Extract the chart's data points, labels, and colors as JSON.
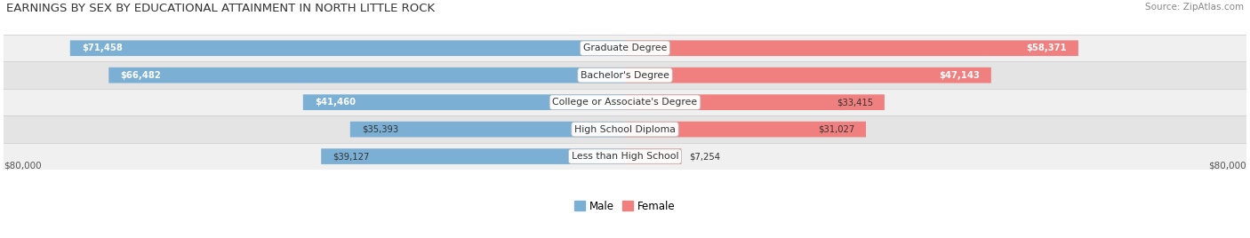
{
  "title": "EARNINGS BY SEX BY EDUCATIONAL ATTAINMENT IN NORTH LITTLE ROCK",
  "source": "Source: ZipAtlas.com",
  "categories": [
    "Less than High School",
    "High School Diploma",
    "College or Associate's Degree",
    "Bachelor's Degree",
    "Graduate Degree"
  ],
  "male_values": [
    39127,
    35393,
    41460,
    66482,
    71458
  ],
  "female_values": [
    7254,
    31027,
    33415,
    47143,
    58371
  ],
  "male_color": "#7bafd4",
  "female_color": "#f08080",
  "row_bg_colors": [
    "#f0f0f0",
    "#e4e4e4"
  ],
  "max_val": 80000,
  "xlabel_left": "$80,000",
  "xlabel_right": "$80,000",
  "legend_male": "Male",
  "legend_female": "Female",
  "title_fontsize": 9.5,
  "bar_height": 0.58,
  "background_color": "#ffffff",
  "label_color": "#444444",
  "value_color_inside": "#333333",
  "value_color_white": "#ffffff"
}
